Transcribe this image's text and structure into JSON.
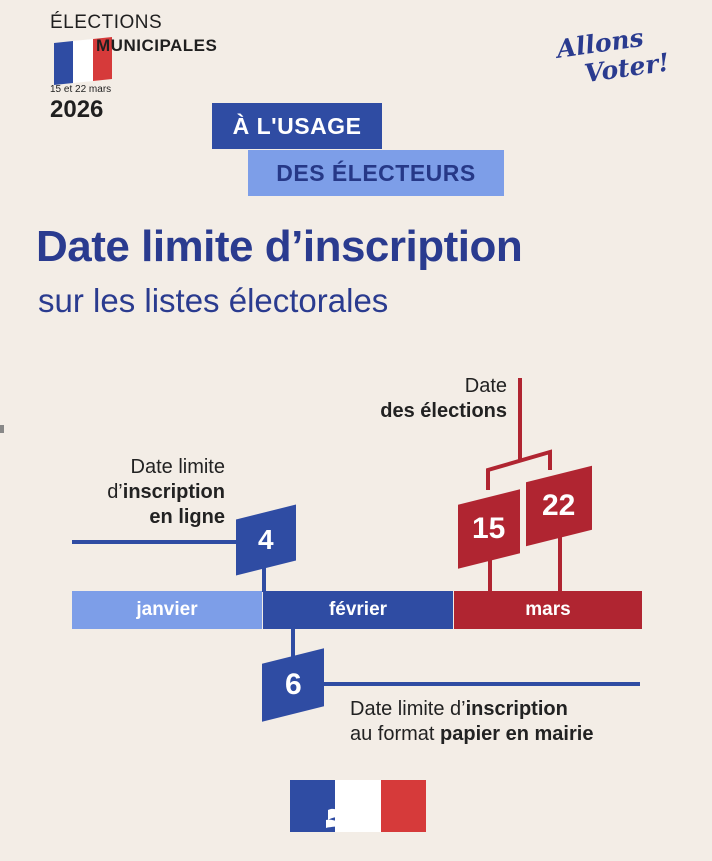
{
  "logo": {
    "line1": "ÉLECTIONS",
    "line2": "MUNICIPALES",
    "dates": "15 et 22 mars",
    "year": "2026",
    "flag_colors": [
      "#2f4ca3",
      "#ffffff",
      "#d63a3a"
    ]
  },
  "slogan": {
    "line1": "Allons",
    "line2": "Voter!"
  },
  "band": {
    "line1": "À L'USAGE",
    "line2": "DES ÉLECTEURS"
  },
  "title": "Date limite d’inscription",
  "subtitle": "sur les listes électorales",
  "timeline": {
    "months": [
      "janvier",
      "février",
      "mars"
    ],
    "month_colors": [
      "#7d9ee8",
      "#2f4ca3",
      "#b02531"
    ],
    "online": {
      "day": "4",
      "line1": "Date limite",
      "line2_prefix": "d’",
      "line2_bold": "inscription",
      "line3": "en ligne"
    },
    "paper": {
      "day": "6",
      "line1_prefix": "Date limite d’",
      "line1_bold": "inscription",
      "line2_prefix": "au format ",
      "line2_bold": "papier en mairie"
    },
    "elections": {
      "day1": "15",
      "day2": "22",
      "line1": "Date",
      "line2": "des élections"
    }
  },
  "footer": {
    "flag_colors": [
      "#2f4ca3",
      "#ffffff",
      "#d63a3a"
    ],
    "emblem": "marianne-icon"
  }
}
